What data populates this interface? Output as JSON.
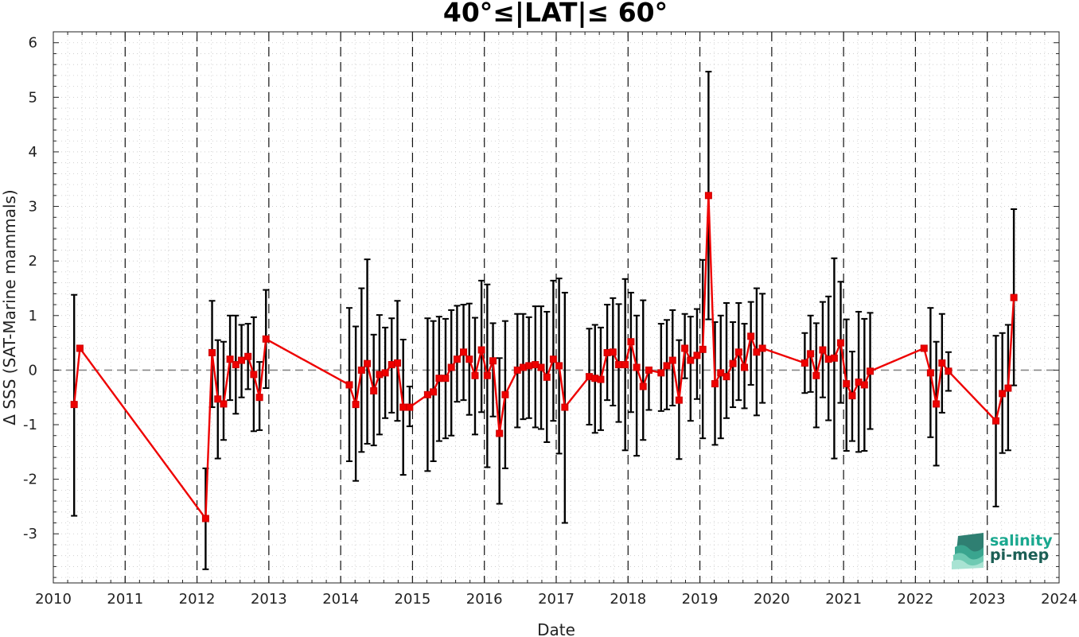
{
  "chart_data": {
    "type": "line",
    "title": "40°≤|LAT|≤ 60°",
    "xlabel": "Date",
    "ylabel": "Δ SSS (SAT-Marine mammals)",
    "xlim": [
      2010,
      2024
    ],
    "ylim": [
      -3.9,
      6.2
    ],
    "xticks": [
      2010,
      2011,
      2012,
      2013,
      2014,
      2015,
      2016,
      2017,
      2018,
      2019,
      2020,
      2021,
      2022,
      2023,
      2024
    ],
    "yticks": [
      -3,
      -2,
      -1,
      0,
      1,
      2,
      3,
      4,
      5,
      6
    ],
    "grid": "minor dotted",
    "year_boundaries": "dashed vertical lines at each year",
    "zero_line": "dashed grey horizontal at 0",
    "series": [
      {
        "color": "#ee0000",
        "marker": "square",
        "error_bar_color": "#000000",
        "x": [
          2010.29,
          2010.37,
          2012.12,
          2012.21,
          2012.29,
          2012.37,
          2012.46,
          2012.54,
          2012.62,
          2012.71,
          2012.79,
          2012.87,
          2012.96,
          2014.12,
          2014.21,
          2014.29,
          2014.37,
          2014.46,
          2014.54,
          2014.62,
          2014.71,
          2014.79,
          2014.87,
          2014.96,
          2015.21,
          2015.29,
          2015.37,
          2015.46,
          2015.54,
          2015.62,
          2015.71,
          2015.79,
          2015.87,
          2015.96,
          2016.04,
          2016.12,
          2016.21,
          2016.29,
          2016.46,
          2016.54,
          2016.62,
          2016.71,
          2016.79,
          2016.87,
          2016.96,
          2017.04,
          2017.12,
          2017.46,
          2017.54,
          2017.62,
          2017.71,
          2017.79,
          2017.87,
          2017.96,
          2018.04,
          2018.12,
          2018.21,
          2018.29,
          2018.46,
          2018.54,
          2018.62,
          2018.71,
          2018.79,
          2018.87,
          2018.96,
          2019.04,
          2019.12,
          2019.21,
          2019.29,
          2019.37,
          2019.46,
          2019.54,
          2019.62,
          2019.71,
          2019.79,
          2019.87,
          2020.46,
          2020.54,
          2020.62,
          2020.71,
          2020.79,
          2020.87,
          2020.96,
          2021.04,
          2021.12,
          2021.21,
          2021.29,
          2021.37,
          2022.12,
          2022.21,
          2022.29,
          2022.37,
          2022.46,
          2023.12,
          2023.21,
          2023.29,
          2023.37
        ],
        "y": [
          -0.63,
          0.4,
          -2.72,
          0.32,
          -0.53,
          -0.62,
          0.2,
          0.1,
          0.18,
          0.25,
          -0.08,
          -0.5,
          0.57,
          -0.27,
          -0.63,
          0.0,
          0.12,
          -0.38,
          -0.08,
          -0.05,
          0.1,
          0.13,
          -0.68,
          -0.68,
          -0.45,
          -0.4,
          -0.15,
          -0.15,
          0.05,
          0.2,
          0.33,
          0.2,
          -0.1,
          0.37,
          -0.1,
          0.17,
          -1.16,
          -0.45,
          0.0,
          0.05,
          0.08,
          0.1,
          0.05,
          -0.13,
          0.2,
          0.08,
          -0.68,
          -0.12,
          -0.15,
          -0.17,
          0.32,
          0.33,
          0.1,
          0.1,
          0.52,
          0.05,
          -0.3,
          0.0,
          -0.05,
          0.08,
          0.18,
          -0.55,
          0.4,
          0.18,
          0.27,
          0.38,
          3.2,
          -0.25,
          -0.05,
          -0.12,
          0.12,
          0.33,
          0.05,
          0.62,
          0.33,
          0.4,
          0.13,
          0.3,
          -0.1,
          0.37,
          0.2,
          0.22,
          0.5,
          -0.25,
          -0.47,
          -0.22,
          -0.27,
          -0.02,
          0.4,
          -0.05,
          -0.62,
          0.13,
          -0.02,
          -0.93,
          -0.43,
          -0.33,
          1.33
        ],
        "err_low": [
          -2.67,
          null,
          -3.65,
          -0.68,
          -1.62,
          -1.28,
          -0.55,
          -0.8,
          -0.5,
          -0.35,
          -1.12,
          -1.1,
          -0.33,
          -1.67,
          -2.03,
          -1.5,
          -1.35,
          -1.38,
          -1.18,
          -0.88,
          -0.78,
          -0.93,
          -1.92,
          -1.03,
          -1.85,
          -1.67,
          -1.3,
          -1.25,
          -1.2,
          -0.58,
          -0.55,
          -0.82,
          -1.18,
          -0.77,
          -1.78,
          -0.85,
          -2.45,
          -1.8,
          -1.05,
          -0.9,
          -0.88,
          -1.05,
          -1.08,
          -1.32,
          -0.93,
          -1.53,
          -2.8,
          -1.0,
          -1.15,
          -1.1,
          -0.55,
          -0.65,
          -0.95,
          -1.47,
          -0.77,
          -1.57,
          -1.28,
          -0.73,
          -0.75,
          -0.72,
          -0.65,
          -1.63,
          -0.15,
          -0.93,
          -0.53,
          -1.25,
          0.93,
          -1.37,
          -1.25,
          -0.88,
          -0.68,
          -0.55,
          -0.7,
          -0.27,
          -0.83,
          -0.6,
          -0.42,
          -0.4,
          -1.05,
          -0.5,
          -0.92,
          -1.62,
          -0.6,
          -1.48,
          -1.3,
          -1.5,
          -1.48,
          -1.08,
          null,
          -1.23,
          -1.75,
          -0.78,
          -0.38,
          -2.5,
          -1.52,
          -1.47,
          -0.28
        ],
        "err_high": [
          1.38,
          null,
          -1.8,
          1.27,
          0.55,
          0.52,
          1.0,
          1.0,
          0.83,
          0.85,
          0.97,
          0.15,
          1.47,
          1.14,
          0.8,
          1.5,
          2.03,
          0.65,
          1.01,
          0.78,
          0.95,
          1.27,
          0.56,
          -0.3,
          0.95,
          0.9,
          0.98,
          0.94,
          1.1,
          1.18,
          1.2,
          1.22,
          0.96,
          1.64,
          1.57,
          0.86,
          0.22,
          0.9,
          1.03,
          1.03,
          0.97,
          1.17,
          1.17,
          1.07,
          1.64,
          1.68,
          1.42,
          0.76,
          0.83,
          0.78,
          1.2,
          1.32,
          1.21,
          1.67,
          1.42,
          1.0,
          1.28,
          -0.02,
          0.85,
          0.92,
          1.1,
          0.55,
          1.03,
          0.98,
          1.12,
          2.02,
          5.47,
          0.88,
          1.0,
          1.23,
          0.88,
          1.23,
          0.85,
          1.25,
          1.5,
          1.4,
          0.68,
          1.0,
          0.86,
          1.25,
          1.35,
          2.05,
          1.62,
          0.93,
          0.34,
          1.07,
          0.94,
          1.05,
          0.78,
          1.14,
          0.52,
          1.03,
          0.33,
          0.63,
          0.68,
          0.83,
          2.95
        ]
      }
    ]
  },
  "logo": {
    "line1": "salinity",
    "line2": "pi-mep",
    "colors": [
      "#1aa88f",
      "#1b5f55"
    ]
  }
}
